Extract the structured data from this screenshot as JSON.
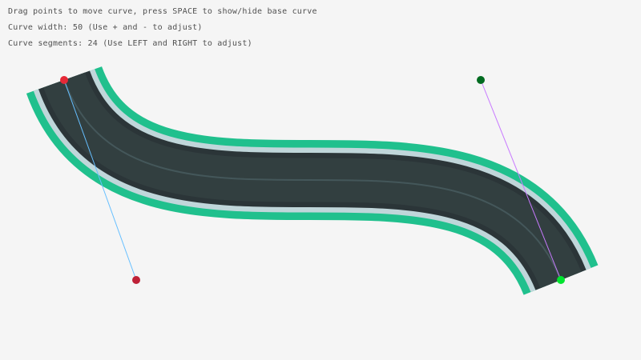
{
  "instructions": [
    "Drag points to move curve, press SPACE to show/hide base curve",
    "Curve width: 50 (Use + and - to adjust)",
    "Curve segments: 24 (Use LEFT and RIGHT to adjust)"
  ],
  "curve": {
    "width": 50,
    "segments": 24,
    "start": {
      "x": 80,
      "y": 100
    },
    "control1": {
      "x": 170,
      "y": 350
    },
    "control2": {
      "x": 600,
      "y": 100
    },
    "end": {
      "x": 700,
      "y": 350
    }
  },
  "colors": {
    "background": "#f5f5f5",
    "road_edge": "#20c08d",
    "road_curb": "#c0d6da",
    "road_border": "#2b3538",
    "road": "#323f40",
    "road_line": "#44575a",
    "start_point": "#e62937",
    "control1_point": "#be2137",
    "control2_point": "#006b20",
    "end_point": "#00e430",
    "control1_line": "#66bfff",
    "control2_line": "#c87aff"
  }
}
